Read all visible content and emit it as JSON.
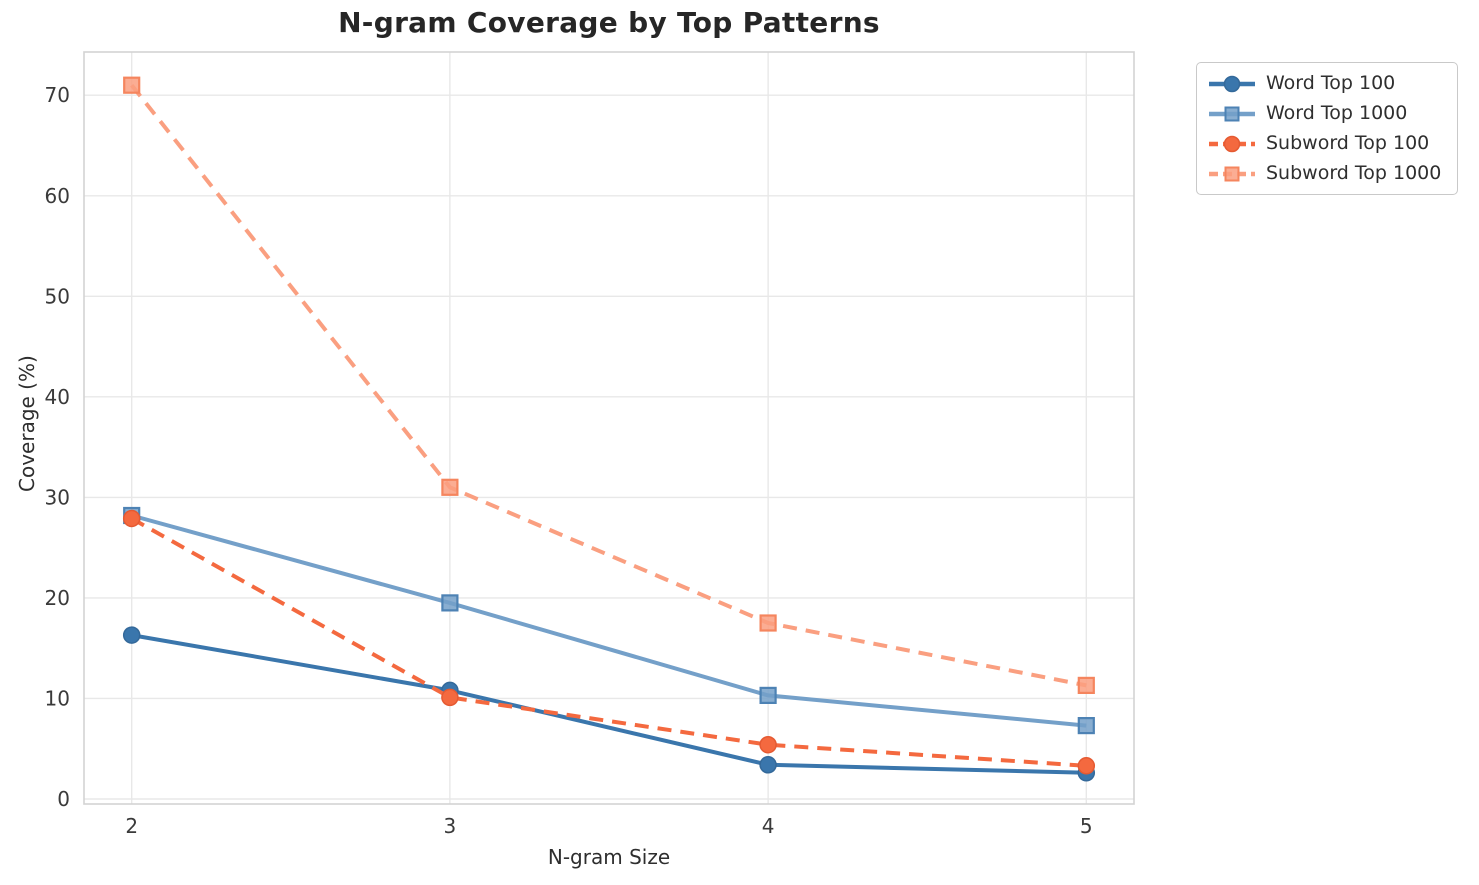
{
  "figure": {
    "background": "#ffffff"
  },
  "chart_data": {
    "type": "line",
    "title": "N-gram Coverage by Top Patterns",
    "xlabel": "N-gram Size",
    "ylabel": "Coverage (%)",
    "x": [
      2,
      3,
      4,
      5
    ],
    "xticks": [
      2,
      3,
      4,
      5
    ],
    "yticks": [
      0,
      10,
      20,
      30,
      40,
      50,
      60,
      70
    ],
    "xlim": [
      1.85,
      5.15
    ],
    "ylim": [
      -0.5,
      74.3
    ],
    "grid": true,
    "legend_position": "upper-right-outside",
    "series": [
      {
        "name": "Word Top 100",
        "values": [
          16.3,
          10.8,
          3.4,
          2.6
        ],
        "color": "#3a76ac",
        "marker_edge": "#34699a",
        "linestyle": "solid",
        "marker": "circle"
      },
      {
        "name": "Word Top 1000",
        "values": [
          28.2,
          19.5,
          10.3,
          7.3
        ],
        "color": "#74a0c9",
        "marker_edge": "#4d82b4",
        "linestyle": "solid",
        "marker": "square"
      },
      {
        "name": "Subword Top 100",
        "values": [
          27.9,
          10.1,
          5.4,
          3.3
        ],
        "color": "#f4693f",
        "marker_edge": "#e55a32",
        "linestyle": "dashed",
        "marker": "circle"
      },
      {
        "name": "Subword Top 1000",
        "values": [
          71.0,
          31.0,
          17.5,
          11.3
        ],
        "color": "#fa9f80",
        "marker_edge": "#f5855e",
        "linestyle": "dashed",
        "marker": "square"
      }
    ]
  },
  "axes": {
    "y_tick_labels": [
      "0",
      "10",
      "20",
      "30",
      "40",
      "50",
      "60",
      "70"
    ],
    "x_tick_labels": [
      "2",
      "3",
      "4",
      "5"
    ]
  },
  "styles": {
    "grid_color": "#e8e8e8",
    "spine_color": "#d3d3d3",
    "tick_label_color": "#3a3a3a",
    "title_color": "#262626",
    "axis_label_color": "#2e2e2e",
    "legend_border_color": "#c9c9c9"
  }
}
